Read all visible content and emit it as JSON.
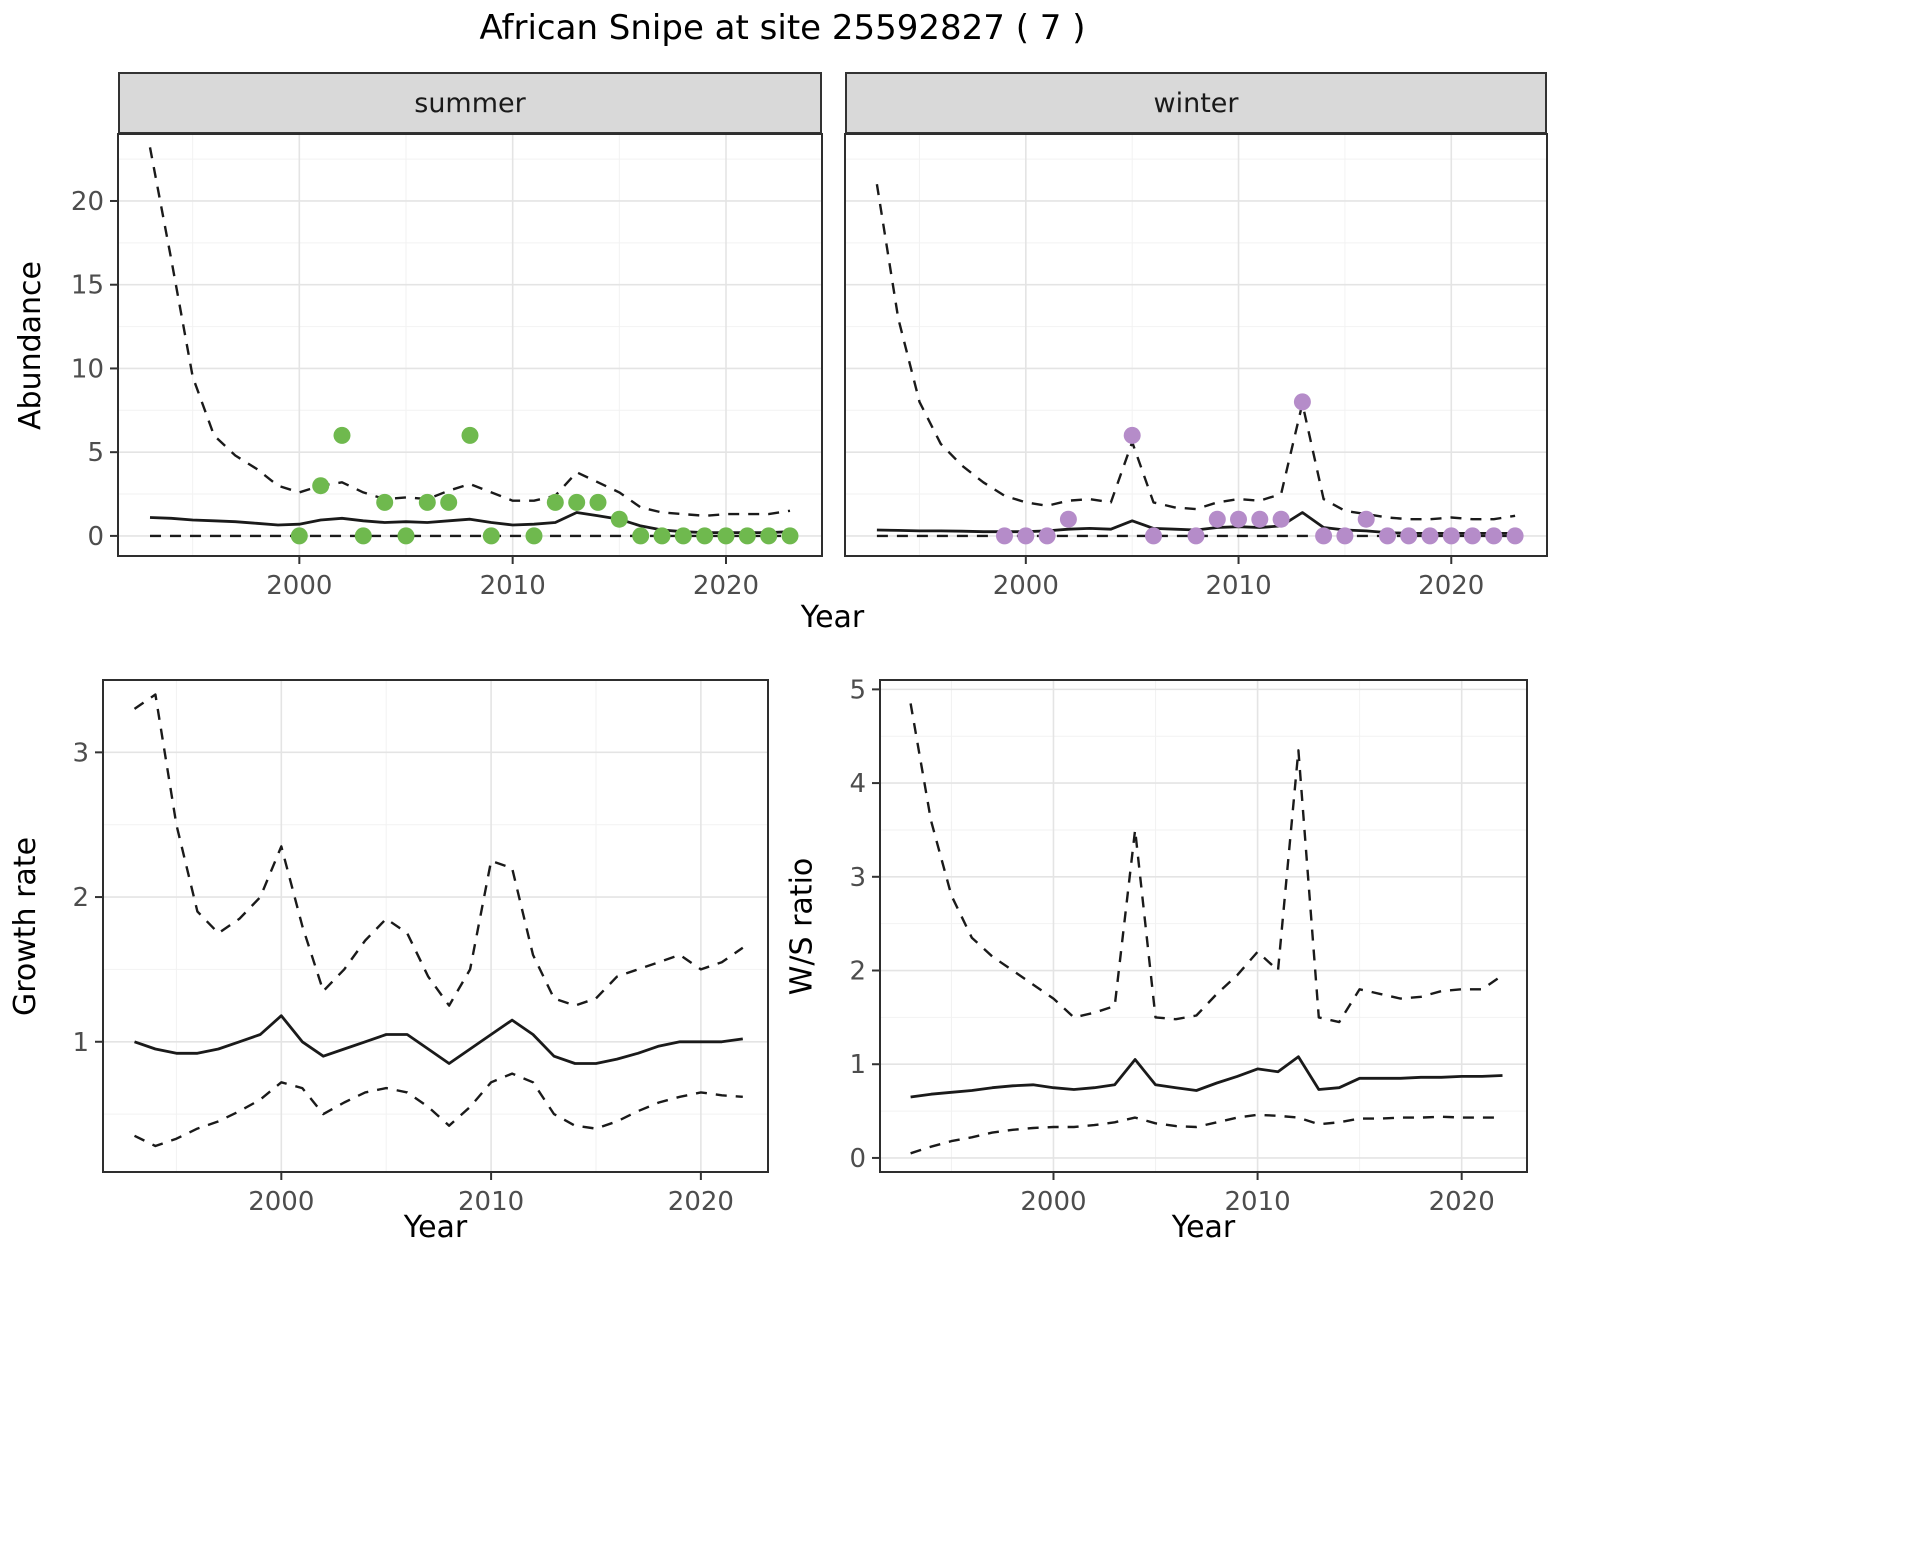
{
  "title": "African Snipe at site 25592827 ( 7 )",
  "theme": {
    "background": "#ffffff",
    "strip_bg": "#d9d9d9",
    "panel_border": "#2e2e2e",
    "grid_major": "#e4e4e4",
    "grid_minor": "#f2f2f2",
    "line": "#1a1a1a",
    "tick_label": "#4d4d4d",
    "summer_point": "#6fb94e",
    "winter_point": "#b58cc9"
  },
  "chart_data": [
    {
      "id": "summer_abundance",
      "type": "line",
      "facet_label": "summer",
      "xlabel": "Year",
      "ylabel": "Abundance",
      "xlim": [
        1991.5,
        2024.5
      ],
      "ylim": [
        -1.2,
        24
      ],
      "xticks": [
        2000,
        2010,
        2020
      ],
      "xticks_minor": [
        1995,
        2005,
        2015
      ],
      "yticks": [
        0,
        5,
        10,
        15,
        20
      ],
      "yticks_minor": [
        2.5,
        7.5,
        12.5,
        17.5,
        22.5
      ],
      "x": [
        1993,
        1994,
        1995,
        1996,
        1997,
        1998,
        1999,
        2000,
        2001,
        2002,
        2003,
        2004,
        2005,
        2006,
        2007,
        2008,
        2009,
        2010,
        2011,
        2012,
        2013,
        2014,
        2015,
        2016,
        2017,
        2018,
        2019,
        2020,
        2021,
        2022,
        2023
      ],
      "series": [
        {
          "name": "upper_95ci",
          "style": "dashed",
          "color": "#1a1a1a",
          "values": [
            23.2,
            16.5,
            9.5,
            6.0,
            4.8,
            4.0,
            3.0,
            2.6,
            3.0,
            3.2,
            2.6,
            2.2,
            2.3,
            2.2,
            2.7,
            3.1,
            2.6,
            2.1,
            2.1,
            2.4,
            3.8,
            3.2,
            2.6,
            1.7,
            1.4,
            1.3,
            1.2,
            1.3,
            1.3,
            1.3,
            1.5
          ]
        },
        {
          "name": "modelled_mean",
          "style": "solid",
          "color": "#1a1a1a",
          "values": [
            1.1,
            1.05,
            0.95,
            0.9,
            0.85,
            0.75,
            0.65,
            0.7,
            0.95,
            1.05,
            0.9,
            0.8,
            0.85,
            0.8,
            0.9,
            1.0,
            0.8,
            0.65,
            0.7,
            0.8,
            1.4,
            1.2,
            1.0,
            0.6,
            0.35,
            0.25,
            0.2,
            0.2,
            0.2,
            0.2,
            0.25
          ]
        },
        {
          "name": "lower_95ci",
          "style": "dashed",
          "color": "#1a1a1a",
          "values": [
            0,
            0,
            0,
            0,
            0,
            0,
            0,
            0,
            0,
            0,
            0,
            0,
            0,
            0,
            0,
            0,
            0,
            0,
            0,
            0,
            0,
            0,
            0,
            0,
            0,
            0,
            0,
            0,
            0,
            0,
            0
          ]
        },
        {
          "name": "observed_counts",
          "style": "points",
          "color": "#6fb94e",
          "x": [
            2000,
            2001,
            2002,
            2003,
            2004,
            2005,
            2006,
            2007,
            2008,
            2009,
            2011,
            2012,
            2013,
            2014,
            2015,
            2016,
            2017,
            2018,
            2019,
            2020,
            2021,
            2022,
            2023
          ],
          "values": [
            0,
            3,
            6,
            0,
            2,
            0,
            2,
            2,
            6,
            0,
            0,
            2,
            2,
            2,
            1,
            0,
            0,
            0,
            0,
            0,
            0,
            0,
            0
          ]
        }
      ]
    },
    {
      "id": "winter_abundance",
      "type": "line",
      "facet_label": "winter",
      "xlabel": "Year",
      "ylabel": "Abundance",
      "xlim": [
        1991.5,
        2024.5
      ],
      "ylim": [
        -1.2,
        24
      ],
      "xticks": [
        2000,
        2010,
        2020
      ],
      "xticks_minor": [
        1995,
        2005,
        2015
      ],
      "yticks": [
        0,
        5,
        10,
        15,
        20
      ],
      "yticks_minor": [
        2.5,
        7.5,
        12.5,
        17.5,
        22.5
      ],
      "x": [
        1993,
        1994,
        1995,
        1996,
        1997,
        1998,
        1999,
        2000,
        2001,
        2002,
        2003,
        2004,
        2005,
        2006,
        2007,
        2008,
        2009,
        2010,
        2011,
        2012,
        2013,
        2014,
        2015,
        2016,
        2017,
        2018,
        2019,
        2020,
        2021,
        2022,
        2023
      ],
      "series": [
        {
          "name": "upper_95ci",
          "style": "dashed",
          "color": "#1a1a1a",
          "values": [
            21,
            13,
            8,
            5.5,
            4.2,
            3.2,
            2.4,
            2.0,
            1.8,
            2.1,
            2.2,
            2.0,
            5.6,
            2.0,
            1.7,
            1.6,
            2.0,
            2.2,
            2.1,
            2.5,
            7.9,
            2.2,
            1.5,
            1.3,
            1.1,
            1.0,
            1.0,
            1.1,
            1.0,
            1.0,
            1.2
          ]
        },
        {
          "name": "modelled_mean",
          "style": "solid",
          "color": "#1a1a1a",
          "values": [
            0.35,
            0.33,
            0.3,
            0.3,
            0.28,
            0.25,
            0.25,
            0.25,
            0.3,
            0.4,
            0.45,
            0.4,
            0.9,
            0.45,
            0.4,
            0.35,
            0.5,
            0.55,
            0.5,
            0.6,
            1.4,
            0.5,
            0.35,
            0.3,
            0.2,
            0.15,
            0.15,
            0.15,
            0.15,
            0.15,
            0.15
          ]
        },
        {
          "name": "lower_95ci",
          "style": "dashed",
          "color": "#1a1a1a",
          "values": [
            0,
            0,
            0,
            0,
            0,
            0,
            0,
            0,
            0,
            0,
            0,
            0,
            0,
            0,
            0,
            0,
            0,
            0,
            0,
            0,
            0,
            0,
            0,
            0,
            0,
            0,
            0,
            0,
            0,
            0,
            0
          ]
        },
        {
          "name": "observed_counts",
          "style": "points",
          "color": "#b58cc9",
          "x": [
            1999,
            2000,
            2001,
            2002,
            2005,
            2006,
            2008,
            2009,
            2010,
            2011,
            2012,
            2013,
            2014,
            2015,
            2016,
            2017,
            2018,
            2019,
            2020,
            2021,
            2022,
            2023
          ],
          "values": [
            0,
            0,
            0,
            1,
            6,
            0,
            0,
            1,
            1,
            1,
            1,
            8,
            0,
            0,
            1,
            0,
            0,
            0,
            0,
            0,
            0,
            0
          ]
        }
      ]
    },
    {
      "id": "growth_rate",
      "type": "line",
      "xlabel": "Year",
      "ylabel": "Growth rate",
      "xlim": [
        1991.5,
        2023.2
      ],
      "ylim": [
        0.1,
        3.5
      ],
      "xticks": [
        2000,
        2010,
        2020
      ],
      "xticks_minor": [
        1995,
        2005,
        2015
      ],
      "yticks": [
        1,
        2,
        3
      ],
      "yticks_minor": [
        0.5,
        1.5,
        2.5
      ],
      "x": [
        1993,
        1994,
        1995,
        1996,
        1997,
        1998,
        1999,
        2000,
        2001,
        2002,
        2003,
        2004,
        2005,
        2006,
        2007,
        2008,
        2009,
        2010,
        2011,
        2012,
        2013,
        2014,
        2015,
        2016,
        2017,
        2018,
        2019,
        2020,
        2021,
        2022
      ],
      "series": [
        {
          "name": "upper_95ci",
          "style": "dashed",
          "color": "#1a1a1a",
          "values": [
            3.3,
            3.4,
            2.5,
            1.9,
            1.75,
            1.85,
            2.0,
            2.35,
            1.8,
            1.35,
            1.5,
            1.7,
            1.85,
            1.75,
            1.45,
            1.25,
            1.5,
            2.25,
            2.2,
            1.6,
            1.3,
            1.25,
            1.3,
            1.45,
            1.5,
            1.55,
            1.6,
            1.5,
            1.55,
            1.65
          ]
        },
        {
          "name": "modelled_mean",
          "style": "solid",
          "color": "#1a1a1a",
          "values": [
            1.0,
            0.95,
            0.92,
            0.92,
            0.95,
            1.0,
            1.05,
            1.18,
            1.0,
            0.9,
            0.95,
            1.0,
            1.05,
            1.05,
            0.95,
            0.85,
            0.95,
            1.05,
            1.15,
            1.05,
            0.9,
            0.85,
            0.85,
            0.88,
            0.92,
            0.97,
            1.0,
            1.0,
            1.0,
            1.02
          ]
        },
        {
          "name": "lower_95ci",
          "style": "dashed",
          "color": "#1a1a1a",
          "values": [
            0.35,
            0.28,
            0.33,
            0.4,
            0.45,
            0.52,
            0.6,
            0.72,
            0.68,
            0.5,
            0.58,
            0.65,
            0.68,
            0.65,
            0.55,
            0.42,
            0.55,
            0.72,
            0.78,
            0.72,
            0.5,
            0.42,
            0.4,
            0.45,
            0.52,
            0.58,
            0.62,
            0.65,
            0.63,
            0.62
          ]
        }
      ]
    },
    {
      "id": "ws_ratio",
      "type": "line",
      "xlabel": "Year",
      "ylabel": "W/S ratio",
      "xlim": [
        1991.5,
        2023.2
      ],
      "ylim": [
        -0.15,
        5.1
      ],
      "xticks": [
        2000,
        2010,
        2020
      ],
      "xticks_minor": [
        1995,
        2005,
        2015
      ],
      "yticks": [
        0,
        1,
        2,
        3,
        4,
        5
      ],
      "yticks_minor": [
        0.5,
        1.5,
        2.5,
        3.5,
        4.5
      ],
      "x": [
        1993,
        1994,
        1995,
        1996,
        1997,
        1998,
        1999,
        2000,
        2001,
        2002,
        2003,
        2004,
        2005,
        2006,
        2007,
        2008,
        2009,
        2010,
        2011,
        2012,
        2013,
        2014,
        2015,
        2016,
        2017,
        2018,
        2019,
        2020,
        2021,
        2022
      ],
      "series": [
        {
          "name": "upper_95ci",
          "style": "dashed",
          "color": "#1a1a1a",
          "values": [
            4.85,
            3.6,
            2.8,
            2.35,
            2.15,
            2.0,
            1.85,
            1.7,
            1.5,
            1.55,
            1.62,
            3.5,
            1.5,
            1.48,
            1.52,
            1.75,
            1.95,
            2.2,
            2.0,
            4.35,
            1.5,
            1.45,
            1.8,
            1.75,
            1.7,
            1.72,
            1.78,
            1.8,
            1.8,
            1.95
          ]
        },
        {
          "name": "modelled_mean",
          "style": "solid",
          "color": "#1a1a1a",
          "values": [
            0.65,
            0.68,
            0.7,
            0.72,
            0.75,
            0.77,
            0.78,
            0.75,
            0.73,
            0.75,
            0.78,
            1.05,
            0.78,
            0.75,
            0.72,
            0.8,
            0.87,
            0.95,
            0.92,
            1.08,
            0.73,
            0.75,
            0.85,
            0.85,
            0.85,
            0.86,
            0.86,
            0.87,
            0.87,
            0.88
          ]
        },
        {
          "name": "lower_95ci",
          "style": "dashed",
          "color": "#1a1a1a",
          "values": [
            0.05,
            0.12,
            0.18,
            0.22,
            0.27,
            0.3,
            0.32,
            0.33,
            0.33,
            0.35,
            0.38,
            0.43,
            0.37,
            0.34,
            0.33,
            0.38,
            0.43,
            0.46,
            0.45,
            0.43,
            0.36,
            0.38,
            0.42,
            0.42,
            0.43,
            0.43,
            0.44,
            0.43,
            0.43,
            0.43
          ]
        }
      ]
    }
  ]
}
